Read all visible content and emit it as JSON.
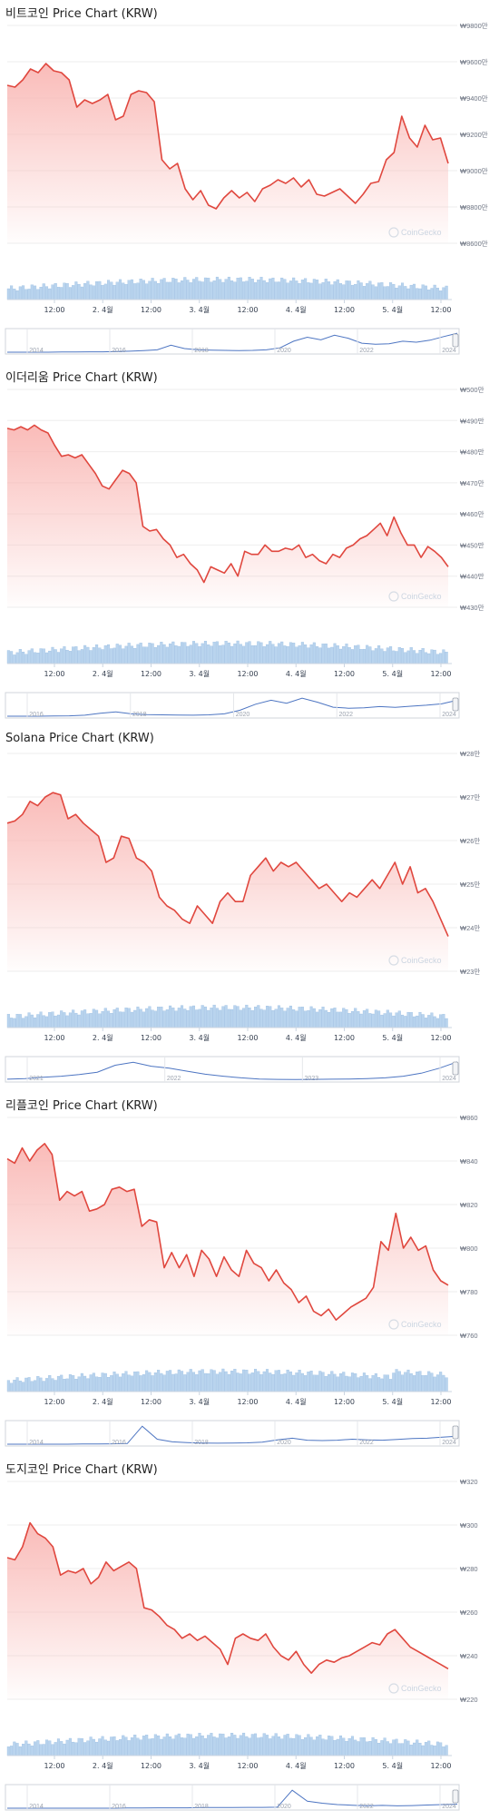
{
  "watermark": "CoinGecko",
  "colors": {
    "price_line": "#e0473e",
    "area_top": "#f9b8b5",
    "volume_bar": "#b9d4ee",
    "volume_edge": "#8fb6de",
    "navigator_line": "#4d75c2",
    "grid": "#eeeeee"
  },
  "chart_data": [
    {
      "type": "area",
      "title": "비트코인 Price Chart (KRW)",
      "y_ticks": [
        "₩9800만",
        "₩9600만",
        "₩9400만",
        "₩9200만",
        "₩9000만",
        "₩8800만",
        "₩8600만"
      ],
      "ylim": [
        8600,
        9800
      ],
      "y_unit": "만 KRW",
      "x_ticks": [
        "12:00",
        "2. 4월",
        "12:00",
        "3. 4월",
        "12:00",
        "4. 4월",
        "12:00",
        "5. 4월",
        "12:00"
      ],
      "navigator_labels": [
        "2014",
        "2016",
        "2018",
        "2020",
        "2022",
        "2024"
      ],
      "price": [
        9470,
        9460,
        9500,
        9560,
        9540,
        9590,
        9550,
        9540,
        9500,
        9350,
        9390,
        9370,
        9390,
        9420,
        9280,
        9300,
        9420,
        9440,
        9430,
        9380,
        9060,
        9010,
        9040,
        8900,
        8840,
        8890,
        8810,
        8790,
        8850,
        8890,
        8850,
        8880,
        8830,
        8900,
        8920,
        8950,
        8930,
        8960,
        8910,
        8950,
        8870,
        8860,
        8880,
        8900,
        8860,
        8820,
        8870,
        8930,
        8940,
        9060,
        9100,
        9300,
        9180,
        9130,
        9250,
        9170,
        9180,
        9040
      ]
    },
    {
      "type": "area",
      "title": "이더리움 Price Chart (KRW)",
      "y_ticks": [
        "₩500만",
        "₩490만",
        "₩480만",
        "₩470만",
        "₩460만",
        "₩450만",
        "₩440만",
        "₩430만"
      ],
      "ylim": [
        430,
        500
      ],
      "y_unit": "만 KRW",
      "x_ticks": [
        "12:00",
        "2. 4월",
        "12:00",
        "3. 4월",
        "12:00",
        "4. 4월",
        "12:00",
        "5. 4월",
        "12:00"
      ],
      "navigator_labels": [
        "2016",
        "2018",
        "2020",
        "2022",
        "2024"
      ],
      "price": [
        487.5,
        487,
        488,
        487,
        488.5,
        487,
        486,
        482,
        478.5,
        479,
        478,
        479,
        476,
        473,
        469,
        468,
        471,
        474,
        473,
        470,
        456,
        454.5,
        455,
        452,
        450,
        446,
        447,
        444,
        442,
        438,
        443,
        442,
        441,
        444,
        440,
        448,
        447,
        447,
        450,
        448,
        448,
        449,
        448.5,
        450,
        446,
        447,
        445,
        444,
        447,
        446,
        449,
        450,
        452,
        453,
        455,
        457,
        453,
        459,
        454,
        450,
        450,
        446,
        449.5,
        448,
        446,
        443
      ]
    },
    {
      "type": "area",
      "title": "Solana Price Chart (KRW)",
      "y_ticks": [
        "₩28만",
        "₩27만",
        "₩26만",
        "₩25만",
        "₩24만",
        "₩23만"
      ],
      "ylim": [
        23,
        28
      ],
      "y_unit": "만 KRW",
      "x_ticks": [
        "12:00",
        "2. 4월",
        "12:00",
        "3. 4월",
        "12:00",
        "4. 4월",
        "12:00",
        "5. 4월",
        "12:00"
      ],
      "navigator_labels": [
        "2021",
        "2022",
        "2023",
        "2024"
      ],
      "price": [
        26.4,
        26.45,
        26.6,
        26.9,
        26.8,
        27,
        27.1,
        27.05,
        26.5,
        26.6,
        26.4,
        26.25,
        26.1,
        25.5,
        25.6,
        26.1,
        26.05,
        25.6,
        25.5,
        25.3,
        24.7,
        24.5,
        24.4,
        24.2,
        24.1,
        24.5,
        24.3,
        24.1,
        24.6,
        24.8,
        24.6,
        24.6,
        25.2,
        25.4,
        25.6,
        25.3,
        25.5,
        25.4,
        25.5,
        25.3,
        25.1,
        24.9,
        25.0,
        24.8,
        24.6,
        24.8,
        24.7,
        24.9,
        25.1,
        24.9,
        25.2,
        25.5,
        25.0,
        25.4,
        24.8,
        24.9,
        24.6,
        24.2,
        23.8
      ]
    },
    {
      "type": "area",
      "title": "리플코인 Price Chart (KRW)",
      "y_ticks": [
        "₩860",
        "₩840",
        "₩820",
        "₩800",
        "₩780",
        "₩760"
      ],
      "ylim": [
        760,
        860
      ],
      "y_unit": "KRW",
      "x_ticks": [
        "12:00",
        "2. 4월",
        "12:00",
        "3. 4월",
        "12:00",
        "4. 4월",
        "12:00",
        "5. 4월",
        "12:00"
      ],
      "navigator_labels": [
        "2014",
        "2016",
        "2018",
        "2020",
        "2022",
        "2024"
      ],
      "price": [
        841,
        839,
        846,
        840,
        845,
        848,
        843,
        822,
        826,
        824,
        826,
        817,
        818,
        820,
        827,
        828,
        826,
        827,
        810,
        813,
        812,
        791,
        798,
        791,
        797,
        787,
        799,
        795,
        787,
        796,
        790,
        787,
        799,
        793,
        791,
        785,
        790,
        784,
        781,
        775,
        778,
        771,
        769,
        772,
        767,
        770,
        773,
        775,
        777,
        782,
        803,
        799,
        816,
        800,
        805,
        799,
        801,
        790,
        785,
        783
      ]
    },
    {
      "type": "area",
      "title": "도지코인 Price Chart (KRW)",
      "y_ticks": [
        "₩320",
        "₩300",
        "₩280",
        "₩260",
        "₩240",
        "₩220"
      ],
      "ylim": [
        220,
        320
      ],
      "y_unit": "KRW",
      "x_ticks": [
        "12:00",
        "2. 4월",
        "12:00",
        "3. 4월",
        "12:00",
        "4. 4월",
        "12:00",
        "5. 4월",
        "12:00"
      ],
      "navigator_labels": [
        "2014",
        "2016",
        "2018",
        "2020",
        "2022",
        "2024"
      ],
      "price": [
        285,
        284,
        290,
        301,
        296,
        294,
        290,
        277,
        279,
        278,
        280,
        273,
        276,
        283,
        279,
        281,
        283,
        280,
        262,
        261,
        258,
        254,
        252,
        248,
        250,
        247,
        249,
        246,
        243,
        236,
        248,
        250,
        248,
        247,
        250,
        244,
        240,
        238,
        242,
        236,
        232,
        236,
        238,
        237,
        239,
        240,
        242,
        244,
        246,
        245,
        250,
        252,
        248,
        244,
        242,
        240,
        238,
        236,
        234
      ]
    }
  ]
}
